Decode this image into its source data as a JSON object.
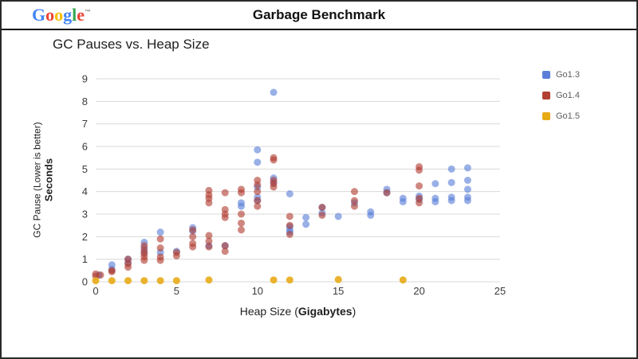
{
  "header": {
    "title": "Garbage Benchmark",
    "logo_letters": [
      {
        "ch": "G",
        "color": "#4285F4"
      },
      {
        "ch": "o",
        "color": "#EA4335"
      },
      {
        "ch": "o",
        "color": "#FBBC05"
      },
      {
        "ch": "g",
        "color": "#4285F4"
      },
      {
        "ch": "l",
        "color": "#34A853"
      },
      {
        "ch": "e",
        "color": "#EA4335"
      }
    ],
    "logo_tm": "TM"
  },
  "slide": {
    "title": "GC Pauses vs. Heap Size"
  },
  "chart_data": {
    "type": "scatter",
    "title": "GC Pauses vs. Heap Size",
    "xlabel": "Heap Size (Gigabytes)",
    "xlabel_prefix": "Heap Size (",
    "xlabel_bold": "Gigabytes",
    "xlabel_suffix": ")",
    "ylabel_line1": "GC Pause (Lower is better)",
    "ylabel_line2": "Seconds",
    "xlim": [
      0,
      25
    ],
    "ylim": [
      0,
      9
    ],
    "x_ticks": [
      0,
      5,
      10,
      15,
      20,
      25
    ],
    "y_ticks": [
      0,
      1,
      2,
      3,
      4,
      5,
      6,
      7,
      8,
      9
    ],
    "grid": true,
    "legend_position": "right",
    "grid_color": "#dadada",
    "tick_color": "#3c3c3c",
    "series": [
      {
        "name": "Go1.3",
        "color": "#5b7fd9",
        "opacity": 0.62,
        "points": [
          [
            0.2,
            0.3
          ],
          [
            1,
            0.55
          ],
          [
            1,
            0.75
          ],
          [
            2,
            0.85
          ],
          [
            2,
            1.0
          ],
          [
            3,
            1.3
          ],
          [
            3,
            1.5
          ],
          [
            3,
            1.75
          ],
          [
            4,
            1.3
          ],
          [
            4,
            2.2
          ],
          [
            5,
            1.35
          ],
          [
            6,
            2.25
          ],
          [
            6,
            2.4
          ],
          [
            7,
            1.6
          ],
          [
            8,
            1.6
          ],
          [
            9,
            3.35
          ],
          [
            9,
            3.5
          ],
          [
            10,
            3.6
          ],
          [
            10,
            3.75
          ],
          [
            10,
            4.2
          ],
          [
            10,
            5.3
          ],
          [
            10,
            5.85
          ],
          [
            11,
            4.4
          ],
          [
            11,
            4.6
          ],
          [
            11,
            8.4
          ],
          [
            12,
            2.2
          ],
          [
            12,
            2.3
          ],
          [
            12,
            2.45
          ],
          [
            12,
            3.9
          ],
          [
            13,
            2.55
          ],
          [
            13,
            2.85
          ],
          [
            14,
            3.05
          ],
          [
            14,
            3.3
          ],
          [
            15,
            2.9
          ],
          [
            16,
            3.5
          ],
          [
            17,
            2.95
          ],
          [
            17,
            3.1
          ],
          [
            18,
            3.95
          ],
          [
            18,
            4.1
          ],
          [
            19,
            3.55
          ],
          [
            19,
            3.7
          ],
          [
            20,
            3.65
          ],
          [
            20,
            3.8
          ],
          [
            21,
            3.55
          ],
          [
            21,
            3.7
          ],
          [
            21,
            4.35
          ],
          [
            22,
            3.6
          ],
          [
            22,
            3.75
          ],
          [
            22,
            4.4
          ],
          [
            22,
            5.0
          ],
          [
            23,
            3.6
          ],
          [
            23,
            3.75
          ],
          [
            23,
            4.1
          ],
          [
            23,
            4.5
          ],
          [
            23,
            5.05
          ]
        ]
      },
      {
        "name": "Go1.4",
        "color": "#b23f33",
        "opacity": 0.62,
        "points": [
          [
            0,
            0.25
          ],
          [
            0,
            0.35
          ],
          [
            0.3,
            0.3
          ],
          [
            1,
            0.45
          ],
          [
            1,
            0.5
          ],
          [
            2,
            0.65
          ],
          [
            2,
            0.8
          ],
          [
            2,
            1.0
          ],
          [
            3,
            0.95
          ],
          [
            3,
            1.1
          ],
          [
            3,
            1.25
          ],
          [
            3,
            1.4
          ],
          [
            3,
            1.6
          ],
          [
            4,
            0.95
          ],
          [
            4,
            1.1
          ],
          [
            4,
            1.5
          ],
          [
            4,
            1.9
          ],
          [
            5,
            1.15
          ],
          [
            5,
            1.3
          ],
          [
            6,
            1.55
          ],
          [
            6,
            1.7
          ],
          [
            6,
            2.0
          ],
          [
            6,
            2.3
          ],
          [
            7,
            1.55
          ],
          [
            7,
            1.8
          ],
          [
            7,
            2.05
          ],
          [
            7,
            3.5
          ],
          [
            7,
            3.7
          ],
          [
            7,
            3.85
          ],
          [
            7,
            4.05
          ],
          [
            8,
            1.35
          ],
          [
            8,
            1.6
          ],
          [
            8,
            2.85
          ],
          [
            8,
            3.0
          ],
          [
            8,
            3.2
          ],
          [
            8,
            3.95
          ],
          [
            9,
            2.3
          ],
          [
            9,
            2.6
          ],
          [
            9,
            3.0
          ],
          [
            9,
            3.95
          ],
          [
            9,
            4.1
          ],
          [
            10,
            3.35
          ],
          [
            10,
            3.6
          ],
          [
            10,
            4.0
          ],
          [
            10,
            4.3
          ],
          [
            10,
            4.5
          ],
          [
            11,
            4.2
          ],
          [
            11,
            4.35
          ],
          [
            11,
            4.5
          ],
          [
            11,
            5.4
          ],
          [
            11,
            5.5
          ],
          [
            12,
            2.1
          ],
          [
            12,
            2.5
          ],
          [
            12,
            2.9
          ],
          [
            14,
            2.95
          ],
          [
            14,
            3.3
          ],
          [
            16,
            3.35
          ],
          [
            16,
            3.6
          ],
          [
            16,
            4.0
          ],
          [
            18,
            3.95
          ],
          [
            20,
            3.5
          ],
          [
            20,
            3.7
          ],
          [
            20,
            4.25
          ],
          [
            20,
            4.95
          ],
          [
            20,
            5.1
          ]
        ]
      },
      {
        "name": "Go1.5",
        "color": "#e8ab18",
        "opacity": 0.9,
        "points": [
          [
            0,
            0.05
          ],
          [
            1,
            0.05
          ],
          [
            2,
            0.05
          ],
          [
            3,
            0.05
          ],
          [
            4,
            0.05
          ],
          [
            5,
            0.05
          ],
          [
            7,
            0.08
          ],
          [
            11,
            0.08
          ],
          [
            12,
            0.08
          ],
          [
            15,
            0.1
          ],
          [
            19,
            0.08
          ]
        ]
      }
    ]
  }
}
